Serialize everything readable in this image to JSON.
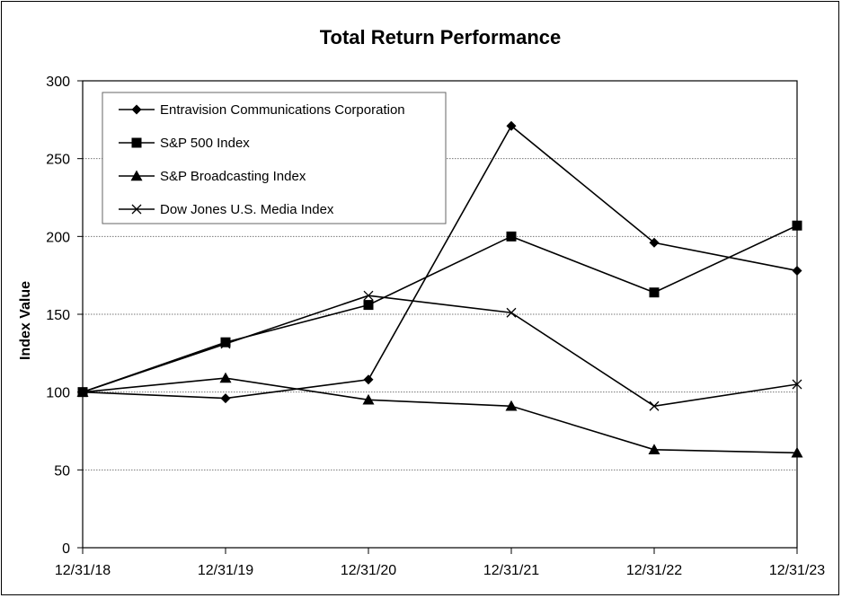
{
  "chart_data": {
    "type": "line",
    "title": "Total Return Performance",
    "xlabel": "",
    "ylabel": "Index Value",
    "categories": [
      "12/31/18",
      "12/31/19",
      "12/31/20",
      "12/31/21",
      "12/31/22",
      "12/31/23"
    ],
    "yticks": [
      "0",
      "50",
      "100",
      "150",
      "200",
      "250",
      "300"
    ],
    "ylim": [
      0,
      300
    ],
    "grid": "horizontal dotted",
    "legend_position": "top-left",
    "series": [
      {
        "name": "Entravision Communications Corporation",
        "marker": "diamond",
        "values": [
          100,
          96,
          108,
          271,
          196,
          178
        ]
      },
      {
        "name": "S&P 500 Index",
        "marker": "square",
        "values": [
          100,
          132,
          156,
          200,
          164,
          207
        ]
      },
      {
        "name": "S&P Broadcasting Index",
        "marker": "triangle",
        "values": [
          100,
          109,
          95,
          91,
          63,
          61
        ]
      },
      {
        "name": "Dow Jones U.S. Media Index",
        "marker": "x",
        "values": [
          100,
          131,
          162,
          151,
          91,
          105
        ]
      }
    ],
    "line_color": "#000000"
  }
}
